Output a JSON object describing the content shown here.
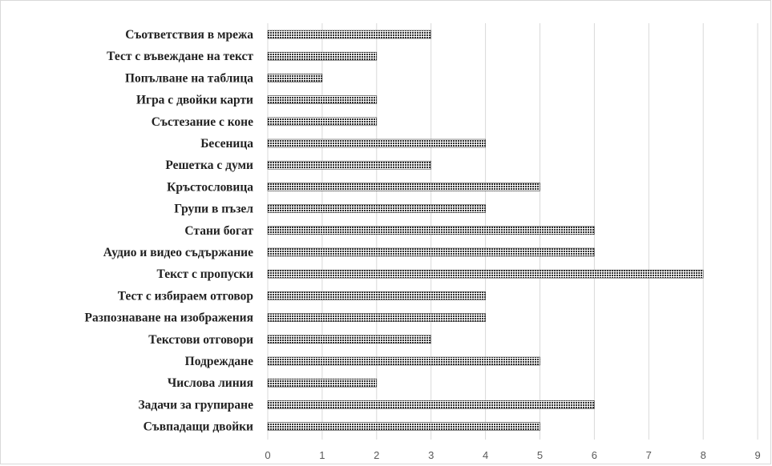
{
  "chart_data": {
    "type": "bar",
    "orientation": "horizontal",
    "title": "",
    "xlabel": "",
    "ylabel": "",
    "categories": [
      "Съответствия в мрежа",
      "Тест с въвеждане на текст",
      "Попълване на таблица",
      "Игра с двойки карти",
      "Състезание с коне",
      "Бесеница",
      "Решетка с думи",
      "Кръстословица",
      "Групи в пъзел",
      "Стани богат",
      "Аудио и видео съдържание",
      "Текст с пропуски",
      "Тест с избираем отговор",
      "Разпознаване на изображения",
      "Текстови отговори",
      "Подреждане",
      "Числова линия",
      "Задачи за групиране",
      "Съвпадащи двойки"
    ],
    "values": [
      3,
      2,
      1,
      2,
      2,
      4,
      3,
      5,
      4,
      6,
      6,
      8,
      4,
      4,
      3,
      5,
      2,
      6,
      5
    ],
    "xlim": [
      0,
      9
    ],
    "xticks": [
      "0",
      "1",
      "2",
      "3",
      "4",
      "5",
      "6",
      "7",
      "8",
      "9"
    ],
    "grid": "vertical",
    "legend": "none",
    "bar_color": "#3a3a3a",
    "bar_pattern": "dotted"
  }
}
